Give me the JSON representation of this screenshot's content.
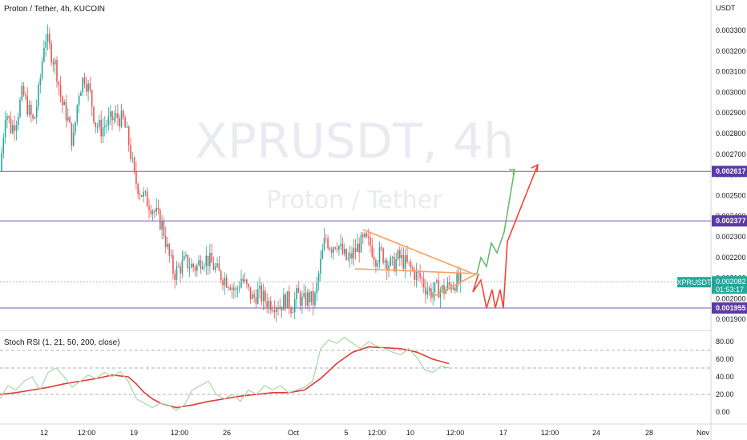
{
  "header": {
    "title": "Proton / Tether, 4h, KUCOIN",
    "currency": "USDT"
  },
  "watermark": {
    "symbol": "XPRUSDT, 4h",
    "name": "Proton / Tether"
  },
  "colors": {
    "up": "#26a69a",
    "down": "#ef5350",
    "level": "#7e57c2",
    "triangle": "#f5a25d",
    "proj_green": "#66bb6a",
    "proj_red": "#f44336",
    "stoch_k": "#a5d6a7",
    "stoch_d": "#e53935"
  },
  "price_axis": {
    "ticks": [
      "0.003300",
      "0.003200",
      "0.003100",
      "0.003000",
      "0.002900",
      "0.002800",
      "0.002700",
      "0.002600",
      "0.002500",
      "0.002400",
      "0.002300",
      "0.002200",
      "0.002100",
      "0.002000",
      "0.001900"
    ]
  },
  "levels": [
    {
      "value": 0.002617,
      "label": "0.002617"
    },
    {
      "value": 0.002377,
      "label": "0.002377"
    },
    {
      "value": 0.001955,
      "label": "0.001955"
    }
  ],
  "last_price": {
    "symbol": "XPRUSDT",
    "value": 0.002082,
    "label": "0.002082",
    "countdown": "01:53:17"
  },
  "indicator": {
    "name": "Stoch RSI (1, 21, 50, 200, close)",
    "ticks": [
      "80.00",
      "60.00",
      "40.00",
      "20.00",
      "0.00"
    ],
    "bands": [
      20,
      50,
      70
    ]
  },
  "time_axis": [
    "12",
    "12:00",
    "19",
    "12:00",
    "26",
    "Oct",
    "5",
    "12:00",
    "10",
    "12:00",
    "17",
    "12:00",
    "24",
    "28",
    "Nov"
  ],
  "chart_data": {
    "type": "candlestick",
    "interval": "4h",
    "ylim": [
      0.00187,
      0.00338
    ],
    "price_path": [
      [
        0,
        0.00262
      ],
      [
        7,
        0.00292
      ],
      [
        14,
        0.00282
      ],
      [
        21,
        0.00288
      ],
      [
        28,
        0.003
      ],
      [
        35,
        0.00292
      ],
      [
        42,
        0.00285
      ],
      [
        49,
        0.00302
      ],
      [
        56,
        0.00328
      ],
      [
        63,
        0.0032
      ],
      [
        70,
        0.00312
      ],
      [
        77,
        0.00295
      ],
      [
        84,
        0.00288
      ],
      [
        91,
        0.00275
      ],
      [
        98,
        0.003
      ],
      [
        105,
        0.00308
      ],
      [
        112,
        0.003
      ],
      [
        119,
        0.00285
      ],
      [
        126,
        0.00282
      ],
      [
        133,
        0.00285
      ],
      [
        140,
        0.00287
      ],
      [
        147,
        0.00288
      ],
      [
        154,
        0.00286
      ],
      [
        161,
        0.00275
      ],
      [
        168,
        0.00258
      ],
      [
        175,
        0.00252
      ],
      [
        182,
        0.00248
      ],
      [
        189,
        0.00245
      ],
      [
        196,
        0.0024
      ],
      [
        203,
        0.00235
      ],
      [
        210,
        0.00222
      ],
      [
        217,
        0.00212
      ],
      [
        224,
        0.00215
      ],
      [
        231,
        0.00218
      ],
      [
        238,
        0.00216
      ],
      [
        245,
        0.00215
      ],
      [
        252,
        0.0022
      ],
      [
        259,
        0.00219
      ],
      [
        266,
        0.00216
      ],
      [
        273,
        0.00212
      ],
      [
        280,
        0.0021
      ],
      [
        287,
        0.00208
      ],
      [
        294,
        0.00203
      ],
      [
        301,
        0.0021
      ],
      [
        308,
        0.00205
      ],
      [
        315,
        0.002
      ],
      [
        322,
        0.00203
      ],
      [
        329,
        0.002
      ],
      [
        336,
        0.00198
      ],
      [
        343,
        0.00198
      ],
      [
        350,
        0.00197
      ],
      [
        357,
        0.002
      ],
      [
        364,
        0.00196
      ],
      [
        371,
        0.00202
      ],
      [
        378,
        0.00198
      ],
      [
        385,
        0.00201
      ],
      [
        392,
        0.00198
      ],
      [
        399,
        0.00215
      ],
      [
        406,
        0.0023
      ],
      [
        413,
        0.00225
      ],
      [
        420,
        0.00228
      ],
      [
        427,
        0.00222
      ],
      [
        434,
        0.00218
      ],
      [
        441,
        0.00222
      ],
      [
        448,
        0.00226
      ],
      [
        455,
        0.00228
      ],
      [
        462,
        0.00226
      ],
      [
        469,
        0.0022
      ],
      [
        476,
        0.00222
      ],
      [
        483,
        0.00218
      ],
      [
        490,
        0.00216
      ],
      [
        497,
        0.0022
      ],
      [
        504,
        0.00218
      ],
      [
        511,
        0.00215
      ],
      [
        518,
        0.00212
      ],
      [
        525,
        0.0021
      ],
      [
        532,
        0.00205
      ],
      [
        539,
        0.00203
      ],
      [
        546,
        0.00205
      ],
      [
        553,
        0.00204
      ],
      [
        560,
        0.00206
      ],
      [
        567,
        0.00208
      ],
      [
        574,
        0.00208
      ]
    ],
    "stoch_k": [
      [
        0,
        15
      ],
      [
        10,
        30
      ],
      [
        20,
        25
      ],
      [
        30,
        35
      ],
      [
        40,
        40
      ],
      [
        50,
        25
      ],
      [
        60,
        45
      ],
      [
        70,
        50
      ],
      [
        80,
        40
      ],
      [
        90,
        28
      ],
      [
        100,
        35
      ],
      [
        110,
        42
      ],
      [
        120,
        38
      ],
      [
        130,
        45
      ],
      [
        140,
        40
      ],
      [
        150,
        46
      ],
      [
        160,
        35
      ],
      [
        170,
        15
      ],
      [
        180,
        10
      ],
      [
        190,
        5
      ],
      [
        200,
        10
      ],
      [
        210,
        8
      ],
      [
        220,
        2
      ],
      [
        230,
        8
      ],
      [
        240,
        25
      ],
      [
        250,
        30
      ],
      [
        260,
        35
      ],
      [
        270,
        20
      ],
      [
        280,
        15
      ],
      [
        290,
        20
      ],
      [
        300,
        12
      ],
      [
        310,
        25
      ],
      [
        320,
        20
      ],
      [
        330,
        30
      ],
      [
        340,
        25
      ],
      [
        350,
        30
      ],
      [
        360,
        22
      ],
      [
        370,
        25
      ],
      [
        380,
        28
      ],
      [
        390,
        35
      ],
      [
        400,
        72
      ],
      [
        410,
        82
      ],
      [
        420,
        78
      ],
      [
        430,
        85
      ],
      [
        440,
        78
      ],
      [
        450,
        72
      ],
      [
        460,
        80
      ],
      [
        470,
        75
      ],
      [
        480,
        72
      ],
      [
        490,
        68
      ],
      [
        500,
        65
      ],
      [
        510,
        72
      ],
      [
        520,
        62
      ],
      [
        530,
        48
      ],
      [
        540,
        45
      ],
      [
        550,
        52
      ],
      [
        560,
        50
      ]
    ],
    "stoch_d": [
      [
        0,
        20
      ],
      [
        20,
        22
      ],
      [
        40,
        25
      ],
      [
        60,
        28
      ],
      [
        80,
        32
      ],
      [
        100,
        35
      ],
      [
        120,
        38
      ],
      [
        140,
        42
      ],
      [
        160,
        40
      ],
      [
        170,
        32
      ],
      [
        180,
        22
      ],
      [
        190,
        15
      ],
      [
        200,
        10
      ],
      [
        220,
        5
      ],
      [
        240,
        8
      ],
      [
        260,
        12
      ],
      [
        280,
        15
      ],
      [
        300,
        18
      ],
      [
        320,
        20
      ],
      [
        340,
        22
      ],
      [
        360,
        22
      ],
      [
        380,
        25
      ],
      [
        400,
        38
      ],
      [
        420,
        55
      ],
      [
        440,
        68
      ],
      [
        460,
        74
      ],
      [
        480,
        73
      ],
      [
        500,
        72
      ],
      [
        520,
        68
      ],
      [
        540,
        60
      ],
      [
        560,
        55
      ]
    ]
  }
}
